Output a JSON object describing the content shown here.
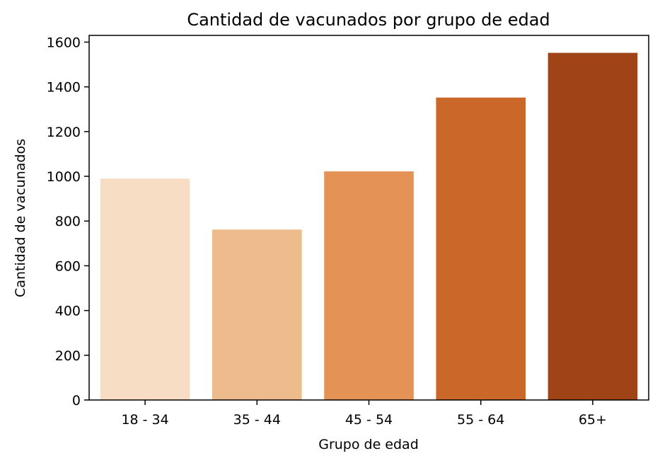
{
  "chart_data": {
    "type": "bar",
    "title": "Cantidad de vacunados por grupo de edad",
    "xlabel": "Grupo de edad",
    "ylabel": "Cantidad de vacunados",
    "categories": [
      "18 - 34",
      "35 - 44",
      "45 - 54",
      "55 - 64",
      "65+"
    ],
    "values": [
      990,
      762,
      1022,
      1352,
      1552
    ],
    "colors": [
      "#f7ddc4",
      "#eebb8c",
      "#e49255",
      "#cc672a",
      "#a04418"
    ],
    "ylim": [
      0,
      1630
    ],
    "yticks": [
      0,
      200,
      400,
      600,
      800,
      1000,
      1200,
      1400,
      1600
    ],
    "grid": false,
    "legend": "none"
  }
}
